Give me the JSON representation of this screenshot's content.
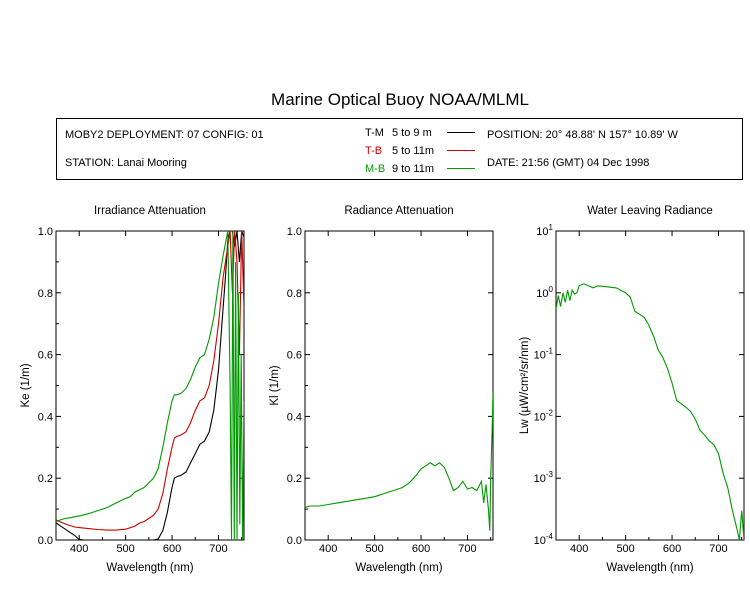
{
  "title": "Marine Optical Buoy NOAA/MLML",
  "info": {
    "deployment": "MOBY2 DEPLOYMENT: 07 CONFIG: 01",
    "station": "STATION: Lanai Mooring",
    "position": "POSITION: 20° 48.88' N   157° 10.89' W",
    "date": "DATE: 21:56 (GMT) 04 Dec 1998"
  },
  "legend": [
    {
      "code": "T-M",
      "depth": "5 to 9  m",
      "color": "#000000"
    },
    {
      "code": "T-B",
      "depth": "5 to 11m",
      "color": "#cc0000"
    },
    {
      "code": "M-B",
      "depth": "9 to 11m",
      "color": "#009900"
    }
  ],
  "chart_data": [
    {
      "type": "line",
      "title": "Irradiance Attenuation",
      "xlabel": "Wavelength (nm)",
      "ylabel": "Ke  (1/m)",
      "xlim": [
        350,
        755
      ],
      "ylim": [
        0,
        1.0
      ],
      "xticks": [
        "400",
        "500",
        "600",
        "700"
      ],
      "yticks": [
        "0.0",
        "0.2",
        "0.4",
        "0.6",
        "0.8",
        "1.0"
      ],
      "series": [
        {
          "name": "T-M",
          "color": "#000000",
          "x": [
            350,
            360,
            370,
            380,
            390,
            395,
            400,
            410,
            420,
            440,
            460,
            480,
            500,
            520,
            540,
            560,
            570,
            580,
            590,
            600,
            605,
            610,
            620,
            630,
            640,
            650,
            660,
            670,
            680,
            690,
            700,
            710,
            715,
            720,
            725,
            730,
            735,
            740,
            745,
            750,
            755
          ],
          "y": [
            0.055,
            0.045,
            0.035,
            0.025,
            0.015,
            0.008,
            0.002,
            0,
            0,
            0,
            0,
            0,
            0,
            0,
            0,
            0,
            0.003,
            0.03,
            0.09,
            0.17,
            0.2,
            0.205,
            0.21,
            0.22,
            0.25,
            0.28,
            0.31,
            0.32,
            0.35,
            0.42,
            0.55,
            0.75,
            0.85,
            0.97,
            1.0,
            1.0,
            0.95,
            1.0,
            0.9,
            1.0,
            0.98
          ]
        },
        {
          "name": "T-B",
          "color": "#cc0000",
          "x": [
            350,
            360,
            370,
            380,
            390,
            400,
            420,
            440,
            460,
            480,
            500,
            520,
            530,
            540,
            560,
            570,
            580,
            590,
            600,
            605,
            610,
            620,
            630,
            640,
            650,
            660,
            670,
            680,
            690,
            700,
            710,
            720,
            725,
            730,
            735,
            740,
            745,
            750,
            755
          ],
          "y": [
            0.065,
            0.058,
            0.052,
            0.047,
            0.042,
            0.04,
            0.037,
            0.034,
            0.032,
            0.032,
            0.035,
            0.045,
            0.055,
            0.06,
            0.08,
            0.1,
            0.15,
            0.23,
            0.3,
            0.33,
            0.335,
            0.34,
            0.35,
            0.38,
            0.42,
            0.45,
            0.46,
            0.5,
            0.58,
            0.7,
            0.85,
            0.95,
            1.0,
            0.8,
            1.0,
            0.9,
            0.6,
            1.0,
            0.75
          ]
        },
        {
          "name": "M-B",
          "color": "#009900",
          "x": [
            350,
            360,
            370,
            380,
            390,
            400,
            420,
            440,
            460,
            480,
            500,
            510,
            520,
            540,
            560,
            570,
            580,
            590,
            600,
            605,
            610,
            620,
            630,
            640,
            650,
            660,
            670,
            680,
            690,
            700,
            710,
            720,
            725,
            728,
            731,
            734,
            737,
            740,
            743,
            746,
            749,
            752,
            755
          ],
          "y": [
            0.06,
            0.065,
            0.07,
            0.072,
            0.075,
            0.078,
            0.085,
            0.095,
            0.105,
            0.12,
            0.135,
            0.14,
            0.155,
            0.17,
            0.2,
            0.23,
            0.3,
            0.38,
            0.45,
            0.47,
            0.47,
            0.475,
            0.49,
            0.52,
            0.56,
            0.59,
            0.6,
            0.65,
            0.72,
            0.83,
            0.92,
            1.0,
            0.5,
            0.0,
            1.0,
            0.0,
            0.9,
            0.0,
            0.8,
            0.05,
            0.6,
            0.0,
            0.45
          ]
        }
      ]
    },
    {
      "type": "line",
      "title": "Radiance Attenuation",
      "xlabel": "Wavelength (nm)",
      "ylabel": "Kl  (1/m)",
      "xlim": [
        350,
        755
      ],
      "ylim": [
        0,
        1.0
      ],
      "xticks": [
        "400",
        "500",
        "600",
        "700"
      ],
      "yticks": [
        "0.0",
        "0.2",
        "0.4",
        "0.6",
        "0.8",
        "1.0"
      ],
      "series": [
        {
          "name": "",
          "color": "#009900",
          "x": [
            350,
            360,
            380,
            400,
            420,
            440,
            460,
            480,
            500,
            520,
            540,
            560,
            575,
            590,
            600,
            610,
            620,
            630,
            640,
            650,
            660,
            670,
            680,
            690,
            700,
            710,
            720,
            730,
            735,
            740,
            745,
            748,
            750,
            753,
            755
          ],
          "y": [
            0.105,
            0.11,
            0.11,
            0.115,
            0.12,
            0.125,
            0.13,
            0.135,
            0.14,
            0.15,
            0.16,
            0.17,
            0.185,
            0.21,
            0.23,
            0.24,
            0.25,
            0.24,
            0.25,
            0.235,
            0.2,
            0.16,
            0.17,
            0.19,
            0.165,
            0.17,
            0.16,
            0.19,
            0.12,
            0.18,
            0.1,
            0.03,
            0.2,
            0.35,
            0.48
          ]
        }
      ]
    },
    {
      "type": "line",
      "title": "Water Leaving Radiance",
      "xlabel": "Wavelength (nm)",
      "ylabel": "Lw  (µW/cm²/sr/nm)",
      "xlim": [
        350,
        755
      ],
      "yscale": "log",
      "ylim": [
        0.0001,
        10
      ],
      "xticks": [
        "400",
        "500",
        "600",
        "700"
      ],
      "yticks": [
        "10^1",
        "10^0",
        "10^-1",
        "10^-2",
        "10^-3",
        "10^-4"
      ],
      "series": [
        {
          "name": "",
          "color": "#009900",
          "x": [
            350,
            355,
            360,
            365,
            370,
            375,
            380,
            385,
            390,
            395,
            400,
            410,
            420,
            430,
            440,
            460,
            480,
            500,
            510,
            520,
            530,
            540,
            550,
            560,
            570,
            580,
            590,
            600,
            610,
            620,
            630,
            640,
            650,
            660,
            670,
            680,
            690,
            700,
            710,
            720,
            730,
            740,
            745,
            750,
            755
          ],
          "y": [
            0.55,
            0.9,
            0.6,
            1.0,
            0.7,
            1.1,
            0.75,
            1.1,
            0.95,
            1.0,
            1.3,
            1.4,
            1.3,
            1.2,
            1.3,
            1.25,
            1.2,
            1.0,
            0.85,
            0.5,
            0.45,
            0.4,
            0.3,
            0.2,
            0.12,
            0.09,
            0.06,
            0.035,
            0.018,
            0.016,
            0.014,
            0.012,
            0.009,
            0.006,
            0.005,
            0.004,
            0.0035,
            0.0025,
            0.0012,
            0.0007,
            0.0003,
            0.00015,
            0.0001,
            0.0003,
            0.0001
          ]
        }
      ]
    }
  ]
}
